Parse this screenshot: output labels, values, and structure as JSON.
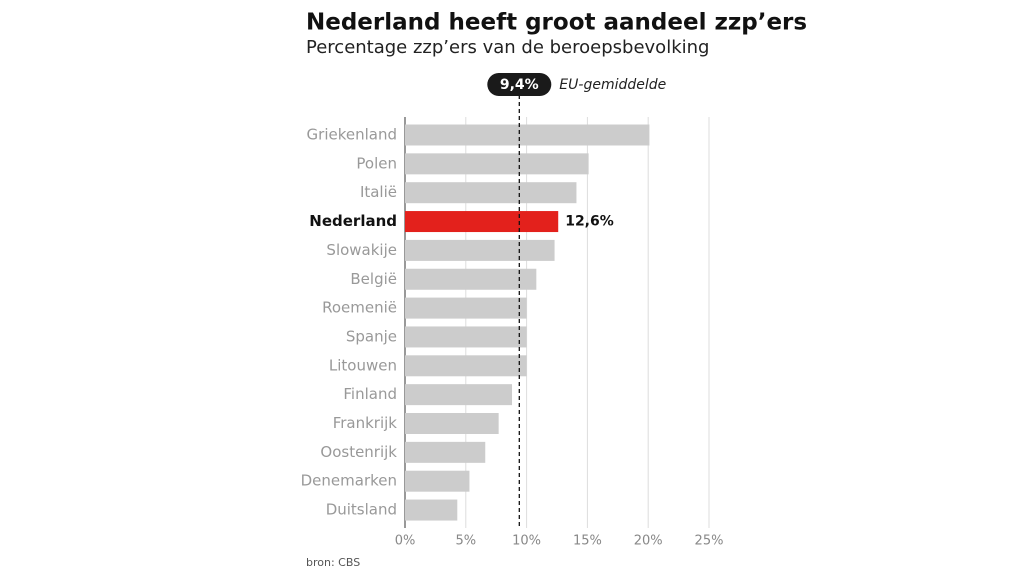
{
  "chart_data": {
    "type": "bar",
    "orientation": "horizontal",
    "title": "Nederland heeft groot aandeel zzp’ers",
    "subtitle": "Percentage zzp’ers van de beroepsbevolking",
    "source": "bron: CBS",
    "categories": [
      "Griekenland",
      "Polen",
      "Italië",
      "Nederland",
      "Slowakije",
      "België",
      "Roemenië",
      "Spanje",
      "Litouwen",
      "Finland",
      "Frankrijk",
      "Oostenrijk",
      "Denemarken",
      "Duitsland"
    ],
    "values": [
      20.1,
      15.1,
      14.1,
      12.6,
      12.3,
      10.8,
      10.0,
      10.0,
      10.0,
      8.8,
      7.7,
      6.6,
      5.3,
      4.3
    ],
    "value_labels": [
      null,
      null,
      null,
      "12,6%",
      null,
      null,
      null,
      null,
      null,
      null,
      null,
      null,
      null,
      null
    ],
    "colors": [
      "#cccccc",
      "#cccccc",
      "#cccccc",
      "#e3211c",
      "#cccccc",
      "#cccccc",
      "#cccccc",
      "#cccccc",
      "#cccccc",
      "#cccccc",
      "#cccccc",
      "#cccccc",
      "#cccccc",
      "#cccccc"
    ],
    "xlim": [
      0,
      25
    ],
    "xticks": [
      {
        "value": 0,
        "label": "0%"
      },
      {
        "value": 5,
        "label": "5%"
      },
      {
        "value": 10,
        "label": "10%"
      },
      {
        "value": 15,
        "label": "15%"
      },
      {
        "value": 20,
        "label": "20%"
      },
      {
        "value": 25,
        "label": "25%"
      }
    ],
    "grid": true,
    "reference_line": {
      "value": 9.4,
      "label": "9,4%",
      "text": "EU-gemiddelde"
    }
  }
}
